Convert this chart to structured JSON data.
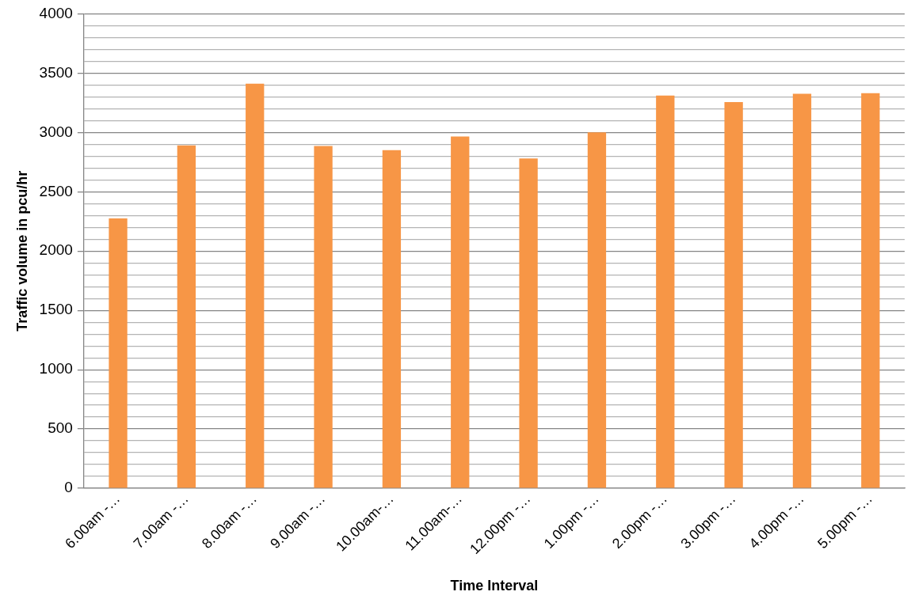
{
  "chart_data": {
    "type": "bar",
    "xlabel": "Time Interval",
    "ylabel": "Traffic volume in pcu/hr",
    "categories": [
      "6.00am -…",
      "7.00am -…",
      "8.00am -…",
      "9.00am -…",
      "10.00am-…",
      "11.00am-…",
      "12.00pm -…",
      "1.00pm -…",
      "2.00pm -…",
      "3.00pm -…",
      "4.00pm -…",
      "5.00pm -…"
    ],
    "values": [
      2275,
      2890,
      3410,
      2885,
      2850,
      2965,
      2780,
      3000,
      3310,
      3255,
      3325,
      3330
    ],
    "color": "#f79646",
    "ylim": [
      0,
      4000
    ],
    "yticks": [
      0,
      {
        "value": 100,
        "label": null
      },
      {
        "value": 200,
        "label": null
      },
      {
        "value": 300,
        "label": null
      },
      {
        "value": 400,
        "label": null
      },
      500,
      {
        "value": 600,
        "label": null
      },
      {
        "value": 700,
        "label": null
      },
      {
        "value": 800,
        "label": null
      },
      {
        "value": 900,
        "label": null
      },
      1000,
      {
        "value": 1100,
        "label": null
      },
      {
        "value": 1200,
        "label": null
      },
      {
        "value": 1300,
        "label": null
      },
      {
        "value": 1400,
        "label": null
      },
      1500,
      {
        "value": 1600,
        "label": null
      },
      {
        "value": 1700,
        "label": null
      },
      {
        "value": 1800,
        "label": null
      },
      {
        "value": 1900,
        "label": null
      },
      2000,
      {
        "value": 2100,
        "label": null
      },
      {
        "value": 2200,
        "label": null
      },
      {
        "value": 2300,
        "label": null
      },
      {
        "value": 2400,
        "label": null
      },
      2500,
      {
        "value": 2600,
        "label": null
      },
      {
        "value": 2700,
        "label": null
      },
      {
        "value": 2800,
        "label": null
      },
      {
        "value": 2900,
        "label": null
      },
      3000,
      {
        "value": 3100,
        "label": null
      },
      {
        "value": 3200,
        "label": null
      },
      {
        "value": 3300,
        "label": null
      },
      {
        "value": 3400,
        "label": null
      },
      3500,
      {
        "value": 3600,
        "label": null
      },
      {
        "value": 3700,
        "label": null
      },
      {
        "value": 3800,
        "label": null
      },
      {
        "value": 3900,
        "label": null
      },
      4000
    ],
    "grid": "y"
  }
}
